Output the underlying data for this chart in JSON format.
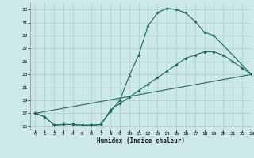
{
  "xlabel": "Humidex (Indice chaleur)",
  "bg_color": "#cce8e8",
  "grid_color": "#aacccc",
  "line_color": "#1a6b5a",
  "ylim": [
    14.5,
    34
  ],
  "xlim": [
    -0.5,
    23
  ],
  "yticks": [
    15,
    17,
    19,
    21,
    23,
    25,
    27,
    29,
    31,
    33
  ],
  "xticks": [
    0,
    1,
    2,
    3,
    4,
    5,
    6,
    7,
    8,
    9,
    10,
    11,
    12,
    13,
    14,
    15,
    16,
    17,
    18,
    19,
    20,
    21,
    22,
    23
  ],
  "line1_x": [
    0,
    1,
    2,
    3,
    4,
    5,
    6,
    7,
    8,
    9,
    10,
    11,
    12,
    13,
    14,
    15,
    16,
    17,
    18,
    19,
    23
  ],
  "line1_y": [
    17,
    16.5,
    15.2,
    15.3,
    15.3,
    15.2,
    15.2,
    15.3,
    17.3,
    19.0,
    22.8,
    26.0,
    30.5,
    32.5,
    33.2,
    33.0,
    32.5,
    31.2,
    29.5,
    29.0,
    23.0
  ],
  "line2_x": [
    0,
    1,
    2,
    3,
    4,
    5,
    6,
    7,
    8,
    9,
    10,
    11,
    12,
    13,
    14,
    15,
    16,
    17,
    18,
    19,
    20,
    21,
    22,
    23
  ],
  "line2_y": [
    17,
    16.5,
    15.2,
    15.3,
    15.3,
    15.2,
    15.2,
    15.3,
    17.5,
    18.5,
    19.5,
    20.5,
    21.5,
    22.5,
    23.5,
    24.5,
    25.5,
    26.0,
    26.5,
    26.5,
    26.0,
    25.0,
    24.0,
    23.0
  ],
  "line3_x": [
    0,
    23
  ],
  "line3_y": [
    17,
    23.0
  ]
}
